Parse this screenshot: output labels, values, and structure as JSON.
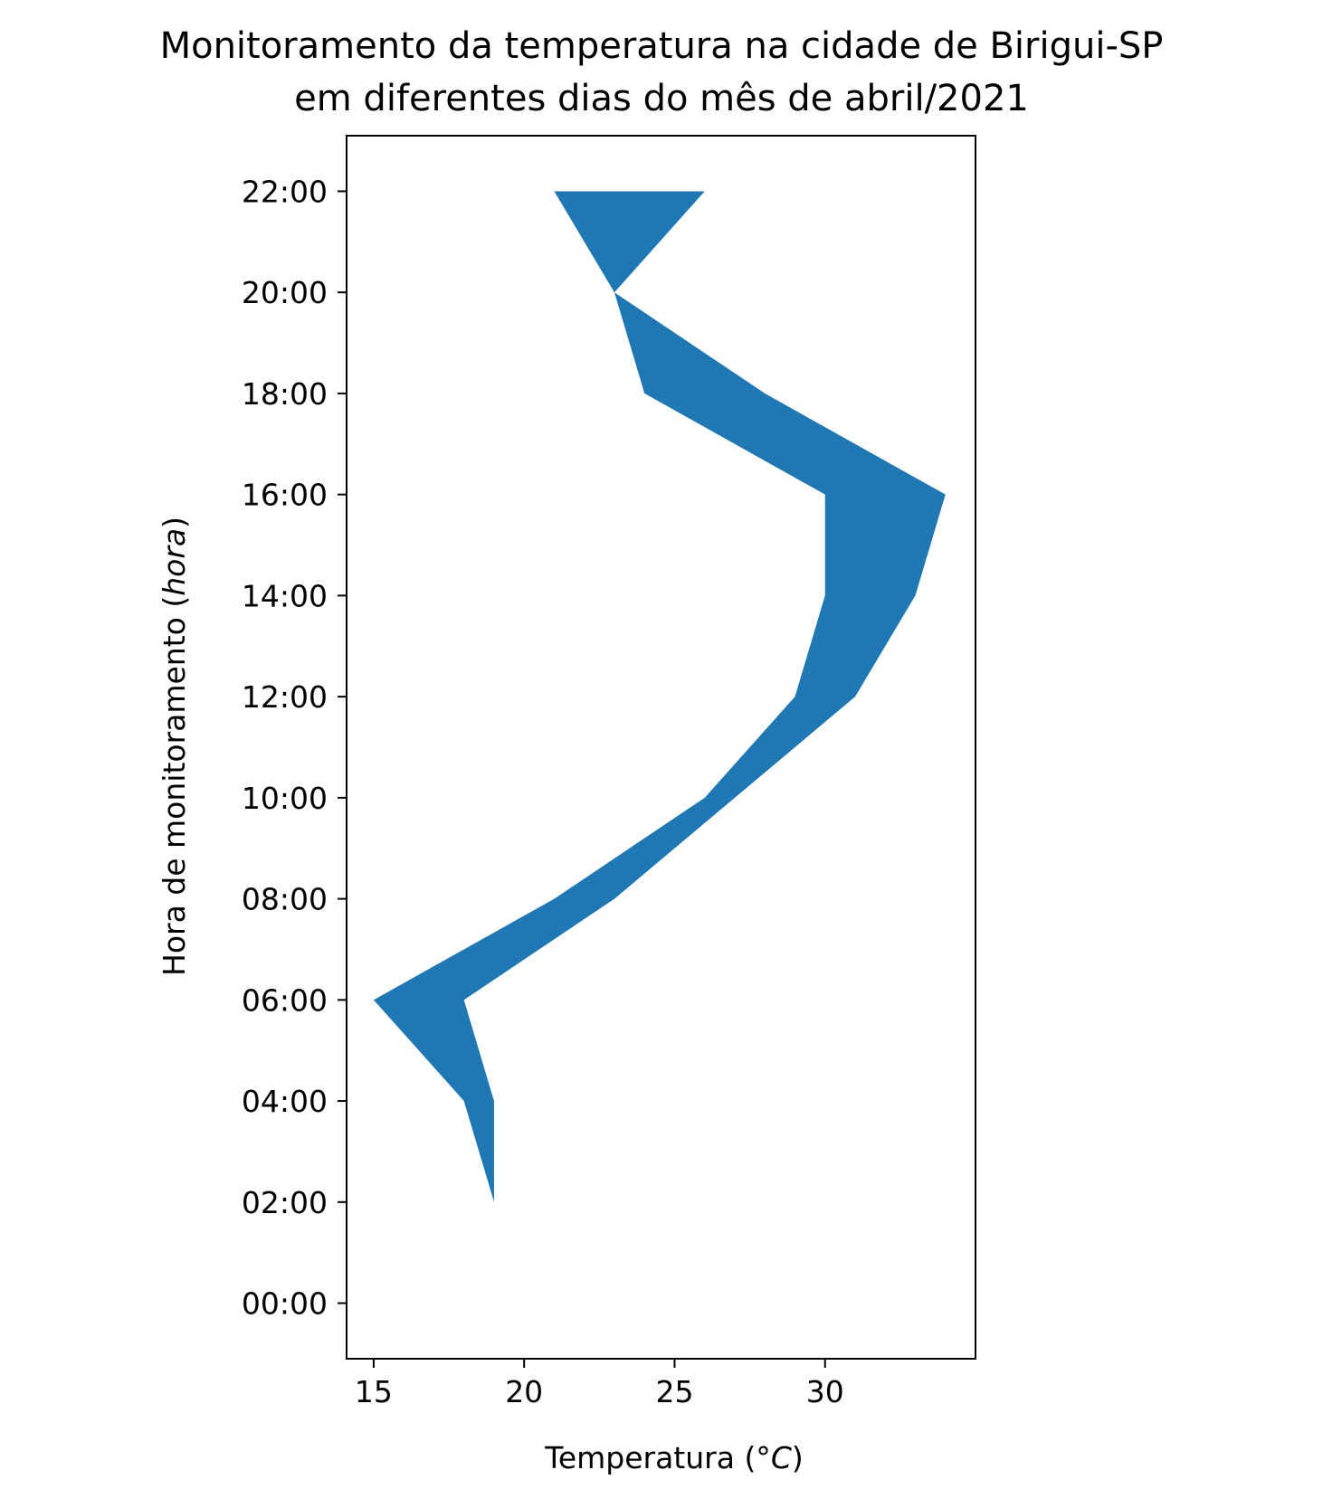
{
  "chart_data": {
    "type": "area",
    "orientation": "horizontal-fill-between",
    "title": "Monitoramento da temperatura na cidade de Birigui-SP",
    "subtitle": "em diferentes dias do mês de abril/2021",
    "xlabel": "Temperatura (°C)",
    "ylabel": "Hora de monitoramento (hora)",
    "xlabel_parts": {
      "prefix": "Temperatura (°",
      "italic": "C",
      "suffix": ")"
    },
    "ylabel_parts": {
      "prefix": "Hora de monitoramento (",
      "italic": "hora",
      "suffix": ")"
    },
    "xlim": [
      14.1,
      35.0
    ],
    "ylim": [
      -1.1,
      23.1
    ],
    "x_ticks": [
      15,
      20,
      25,
      30
    ],
    "y_ticks": [
      0,
      2,
      4,
      6,
      8,
      10,
      12,
      14,
      16,
      18,
      20,
      22
    ],
    "y_tick_labels": [
      "00:00",
      "02:00",
      "04:00",
      "06:00",
      "08:00",
      "10:00",
      "12:00",
      "14:00",
      "16:00",
      "18:00",
      "20:00",
      "22:00"
    ],
    "hours": [
      2,
      4,
      6,
      8,
      10,
      12,
      14,
      16,
      18,
      20,
      22
    ],
    "series": [
      {
        "values": [
          19,
          18,
          15,
          21,
          26,
          29,
          30,
          30,
          24,
          23,
          21
        ]
      },
      {
        "values": [
          19,
          19,
          18,
          23,
          27,
          31,
          33,
          34,
          28,
          23,
          26
        ]
      }
    ],
    "fill_color": "#1f77b4",
    "grid": false,
    "legend": "none"
  }
}
